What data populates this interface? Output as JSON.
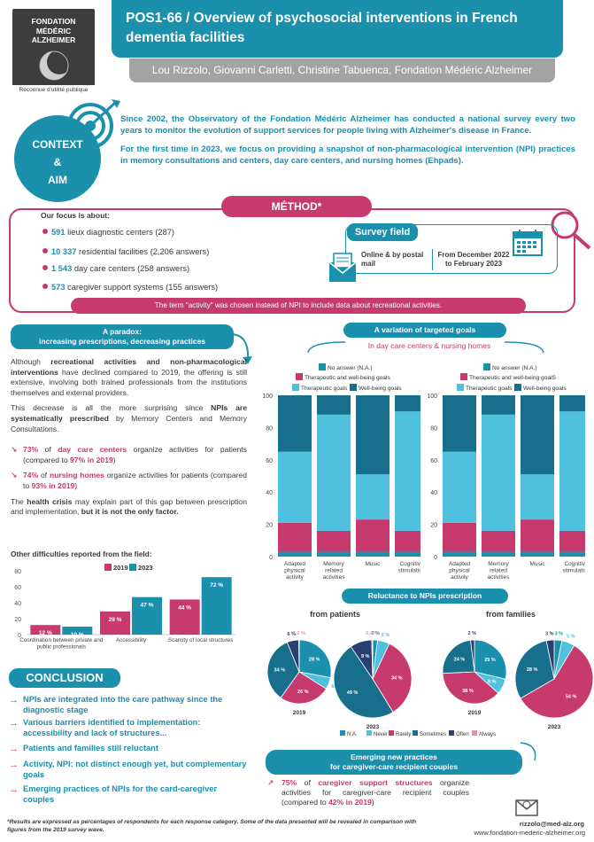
{
  "header": {
    "logo_lines": [
      "FONDATION",
      "MÉDÉRIC",
      "ALZHEIMER"
    ],
    "logo_sub": "Reconnue d'utilité publique",
    "title": "POS1-66 / Overview of psychosocial interventions in French dementia facilities",
    "authors": "Lou Rizzolo, Giovanni Carletti, Christine Tabuenca, Fondation Médéric Alzheimer"
  },
  "context": {
    "label_1": "CONTEXT",
    "label_2": "&",
    "label_3": "AIM",
    "para_1": "Since 2002, the Observatory of the Fondation Médéric Alzheimer has conducted a national survey every two years to monitor the evolution of support services for people living with Alzheimer's disease in France.",
    "para_2": "For the first time in 2023, we focus on providing a snapshot of non-pharmacological intervention (NPI) practices in memory consultations and centers, day care centers, and nursing homes (Ehpads)."
  },
  "method": {
    "title": "MÉTHOD*",
    "focus_title": "Our focus is about:",
    "focus_items": [
      {
        "num": "591",
        "text": " lieux diagnostic centers (287)"
      },
      {
        "num": "10 337",
        "text": " residential facilities (2,206 answers)"
      },
      {
        "num": "1 543",
        "text": " day care centers (258 answers)"
      },
      {
        "num": "573",
        "text": " caregiver support systems (155 answers)"
      }
    ],
    "survey_title": "Survey field",
    "survey_mode": "Online & by postal mail",
    "survey_period": "From December 2022 to February 2023",
    "term_note": "The term \"activity\" was chosen instead of NPI to include data about recreational activities."
  },
  "paradox": {
    "head_1": "A paradox:",
    "head_2": "increasing prescriptions, decreasing practices",
    "p1_a": "Although ",
    "p1_b": "recreational activities and non-pharmacological interventions",
    "p1_c": " have declined compared to 2019, the offering is still extensive, involving both trained professionals from the institutions themselves and external providers.",
    "p2_a": "This decrease is all the more surprising since ",
    "p2_b": "NPIs are systematically prescribed",
    "p2_c": " by Memory Centers and Memory Consultations.",
    "s1_pct": "73%",
    "s1_a": " of ",
    "s1_b": "day care centers",
    "s1_c": " organize activities for patients (compared to ",
    "s1_d": "97% in 2019",
    "s1_e": ")",
    "s2_pct": "74%",
    "s2_a": " of ",
    "s2_b": "nursing homes",
    "s2_c": " organize activities for patients (compared to ",
    "s2_d": "93% in 2019",
    "s2_e": ")",
    "p3_a": "The ",
    "p3_b": "health crisis",
    "p3_c": " may explain part of this gap between prescription and implementation, ",
    "p3_d": "but it is not the only factor."
  },
  "difficulties": {
    "title": "Other difficulties reported from the field:"
  },
  "targeted": {
    "title": "A variation of targeted goals",
    "subtitle": "In day care centers & nursing homes"
  },
  "reluctance": {
    "title": "Reluctance to NPIs prescription",
    "from_patients": "from patients",
    "from_families": "from families"
  },
  "conclusion": {
    "title": "CONCLUSION",
    "items": [
      "NPIs are integrated into the care pathway since the diagnostic stage",
      "Various barriers identified to implementation: accessibility and lack of structures...",
      "Patients and families still reluctant",
      "Activity, NPI: not distinct enough yet, but complementary goals",
      "Emerging practices of NPIs for the card-caregiver couples"
    ]
  },
  "emerging": {
    "title_1": "Emerging new practices",
    "title_2": "for caregiver-care recipient couples",
    "pct": "75%",
    "a": " of ",
    "b": "caregiver support structures",
    "c": " organize activities for caregiver-care recipient couples (compared to ",
    "d": "42% in 2019",
    "e": ")"
  },
  "footer": {
    "footnote": "*Results are expressed as percentages of respondents for each response category. Some of the data presented will be revealed in comparison with figures from the 2019 survey wave.",
    "email": "rizzolo@med-alz.org",
    "website": "www.fondation-mederic-alzheimer.org"
  },
  "colors": {
    "teal": "#1a90ad",
    "light_blue": "#4fc1df",
    "pink": "#c73a6e",
    "dark_teal": "#176f8b",
    "navy": "#2b3f72",
    "light_pink": "#e58fb0"
  },
  "chart_data": [
    {
      "type": "bar",
      "title": "Other difficulties reported from the field:",
      "categories": [
        "Coordination between private and public professionals",
        "Accessibility",
        "Scarcity of local structures"
      ],
      "series": [
        {
          "name": "2019",
          "values": [
            12,
            29,
            44
          ],
          "labels": [
            "12 %",
            "29 %",
            "44 %"
          ]
        },
        {
          "name": "2023",
          "values": [
            10,
            47,
            72
          ],
          "labels": [
            "10 %",
            "47 %",
            "72 %"
          ]
        }
      ],
      "ylim": [
        0,
        80
      ],
      "yticks": [
        "0",
        "20",
        "40",
        "60",
        "80"
      ]
    },
    {
      "type": "bar",
      "subtype": "stacked",
      "title": "A variation of targeted goals",
      "categories": [
        "Adapted physical activity",
        "Memory related activities",
        "Music",
        "Cognitive stimulation"
      ],
      "legend": [
        "No answer (N.A.)",
        "Therapeutic and well-being goals",
        "Therapeutic goals",
        "Well-being goals"
      ],
      "series": [
        {
          "name": "No answer (N.A.)",
          "values": [
            3,
            3,
            3,
            3
          ]
        },
        {
          "name": "Therapeutic and well-being goals",
          "values": [
            18,
            13,
            20,
            13
          ]
        },
        {
          "name": "Therapeutic goals",
          "values": [
            44,
            72,
            28,
            74
          ]
        },
        {
          "name": "Well-being goals",
          "values": [
            35,
            12,
            49,
            10
          ]
        }
      ],
      "ylim": [
        0,
        100
      ],
      "yticks": [
        "0",
        "20",
        "40",
        "60",
        "80",
        "100"
      ]
    },
    {
      "type": "bar",
      "subtype": "stacked",
      "title": "A variation of targeted goals",
      "categories": [
        "Adapted physical activity",
        "Memory related activities",
        "Music",
        "Cognitive stimulation"
      ],
      "legend": [
        "No answer (N.A.)",
        "Therapeutic and well-being goalS",
        "Therapeutic goals",
        "Well-being goals"
      ],
      "series": [
        {
          "name": "No answer (N.A.)",
          "values": [
            3,
            3,
            3,
            3
          ]
        },
        {
          "name": "Therapeutic and well-being goalS",
          "values": [
            18,
            13,
            20,
            13
          ]
        },
        {
          "name": "Therapeutic goals",
          "values": [
            44,
            72,
            28,
            74
          ]
        },
        {
          "name": "Well-being goals",
          "values": [
            35,
            12,
            49,
            10
          ]
        }
      ],
      "ylim": [
        0,
        100
      ],
      "yticks": [
        "0",
        "20",
        "40",
        "60",
        "80",
        "100"
      ]
    },
    {
      "type": "pie",
      "title": "from patients",
      "legend": [
        "N.A.",
        "Never",
        "Rarely",
        "Sometimes",
        "Often",
        "Always"
      ],
      "pies": [
        {
          "label": "2019",
          "values": [
            28,
            6,
            26,
            34,
            6,
            0.2
          ],
          "labels": [
            "28 %",
            "6 %",
            "26 %",
            "34 %",
            "6 %",
            "0,2 %"
          ]
        },
        {
          "label": "2023",
          "values": [
            2,
            5,
            34,
            49,
            9,
            0.4
          ],
          "labels": [
            "2 %",
            "5 %",
            "34 %",
            "49 %",
            "9 %",
            "0,4 %"
          ]
        }
      ]
    },
    {
      "type": "pie",
      "title": "from families",
      "legend": [
        "N.A.",
        "Never",
        "Rarely",
        "Sometimes",
        "Often",
        "Always"
      ],
      "pies": [
        {
          "label": "2019",
          "values": [
            29,
            8,
            38,
            24,
            2,
            0
          ],
          "labels": [
            "29 %",
            "8 %",
            "38 %",
            "24 %",
            "2 %",
            ""
          ]
        },
        {
          "label": "2023",
          "values": [
            3,
            5,
            54,
            28,
            3,
            0
          ],
          "labels": [
            "3 %",
            "5 %",
            "54 %",
            "28 %",
            "3 %",
            ""
          ]
        }
      ]
    }
  ]
}
